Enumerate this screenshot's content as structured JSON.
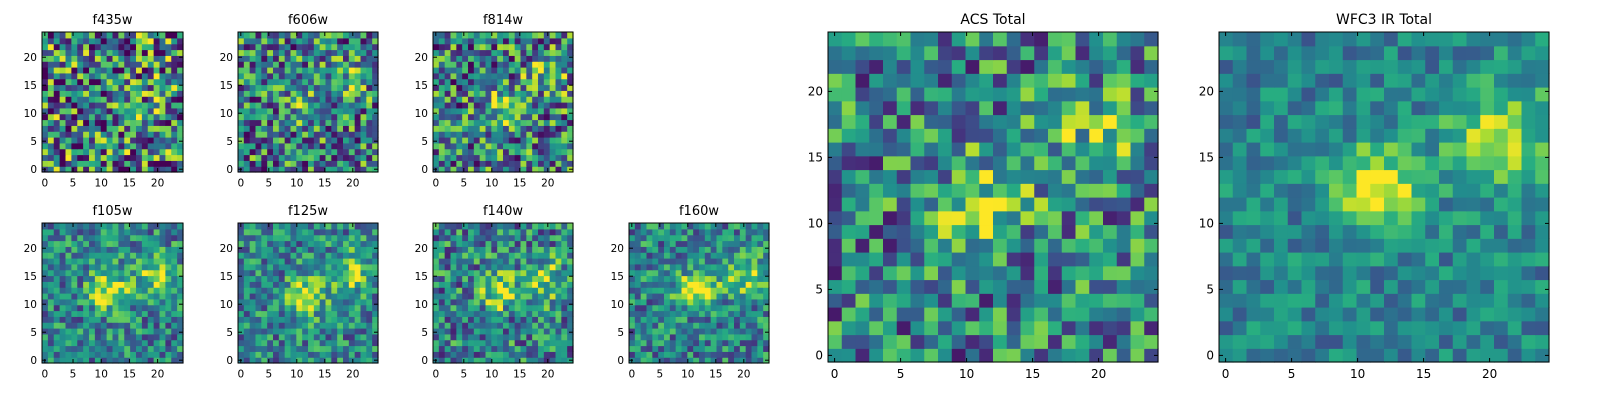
{
  "chart_data": [
    {
      "type": "heatmap",
      "title": "f435w",
      "xticks": [
        0,
        5,
        10,
        15,
        20
      ],
      "yticks": [
        0,
        5,
        10,
        15,
        20
      ],
      "xlim": [
        0,
        24
      ],
      "ylim": [
        0,
        24
      ],
      "grid": 24,
      "source_center": [
        11,
        12
      ],
      "secondary_center": [
        19,
        17
      ],
      "strength": 0.1,
      "noise": 0.55,
      "seed": 101
    },
    {
      "type": "heatmap",
      "title": "f606w",
      "xticks": [
        0,
        5,
        10,
        15,
        20
      ],
      "yticks": [
        0,
        5,
        10,
        15,
        20
      ],
      "xlim": [
        0,
        24
      ],
      "ylim": [
        0,
        24
      ],
      "grid": 24,
      "source_center": [
        11,
        11
      ],
      "secondary_center": [
        19,
        16
      ],
      "strength": 0.25,
      "noise": 0.45,
      "seed": 202
    },
    {
      "type": "heatmap",
      "title": "f814w",
      "xticks": [
        0,
        5,
        10,
        15,
        20
      ],
      "yticks": [
        0,
        5,
        10,
        15,
        20
      ],
      "xlim": [
        0,
        24
      ],
      "ylim": [
        0,
        24
      ],
      "grid": 24,
      "source_center": [
        11,
        11
      ],
      "secondary_center": [
        19,
        16
      ],
      "strength": 0.35,
      "noise": 0.45,
      "seed": 303
    },
    {
      "type": "heatmap",
      "title": "f105w",
      "xticks": [
        0,
        5,
        10,
        15,
        20
      ],
      "yticks": [
        0,
        5,
        10,
        15,
        20
      ],
      "xlim": [
        0,
        24
      ],
      "ylim": [
        0,
        24
      ],
      "grid": 24,
      "source_center": [
        11,
        12
      ],
      "secondary_center": [
        19,
        15
      ],
      "strength": 0.55,
      "noise": 0.3,
      "seed": 404
    },
    {
      "type": "heatmap",
      "title": "f125w",
      "xticks": [
        0,
        5,
        10,
        15,
        20
      ],
      "yticks": [
        0,
        5,
        10,
        15,
        20
      ],
      "xlim": [
        0,
        24
      ],
      "ylim": [
        0,
        24
      ],
      "grid": 24,
      "source_center": [
        11,
        11
      ],
      "secondary_center": [
        19,
        15
      ],
      "strength": 0.55,
      "noise": 0.3,
      "seed": 505
    },
    {
      "type": "heatmap",
      "title": "f140w",
      "xticks": [
        0,
        5,
        10,
        15,
        20
      ],
      "yticks": [
        0,
        5,
        10,
        15,
        20
      ],
      "xlim": [
        0,
        24
      ],
      "ylim": [
        0,
        24
      ],
      "grid": 24,
      "source_center": [
        11,
        12
      ],
      "secondary_center": [
        19,
        14
      ],
      "strength": 0.5,
      "noise": 0.35,
      "seed": 606
    },
    {
      "type": "heatmap",
      "title": "f160w",
      "xticks": [
        0,
        5,
        10,
        15,
        20
      ],
      "yticks": [
        0,
        5,
        10,
        15,
        20
      ],
      "xlim": [
        0,
        24
      ],
      "ylim": [
        0,
        24
      ],
      "grid": 24,
      "source_center": [
        11,
        12
      ],
      "secondary_center": [
        19,
        15
      ],
      "strength": 0.55,
      "noise": 0.3,
      "seed": 707
    },
    {
      "type": "heatmap",
      "title": "ACS Total",
      "xticks": [
        0,
        5,
        10,
        15,
        20
      ],
      "yticks": [
        0,
        5,
        10,
        15,
        20
      ],
      "xlim": [
        0,
        24
      ],
      "ylim": [
        0,
        24
      ],
      "grid": 24,
      "source_center": [
        11,
        11
      ],
      "secondary_center": [
        19,
        16
      ],
      "strength": 0.4,
      "noise": 0.38,
      "seed": 808
    },
    {
      "type": "heatmap",
      "title": "WFC3 IR Total",
      "xticks": [
        0,
        5,
        10,
        15,
        20
      ],
      "yticks": [
        0,
        5,
        10,
        15,
        20
      ],
      "xlim": [
        0,
        24
      ],
      "ylim": [
        0,
        24
      ],
      "grid": 24,
      "source_center": [
        11,
        12
      ],
      "secondary_center": [
        20,
        16
      ],
      "strength": 0.6,
      "noise": 0.2,
      "seed": 909
    }
  ]
}
